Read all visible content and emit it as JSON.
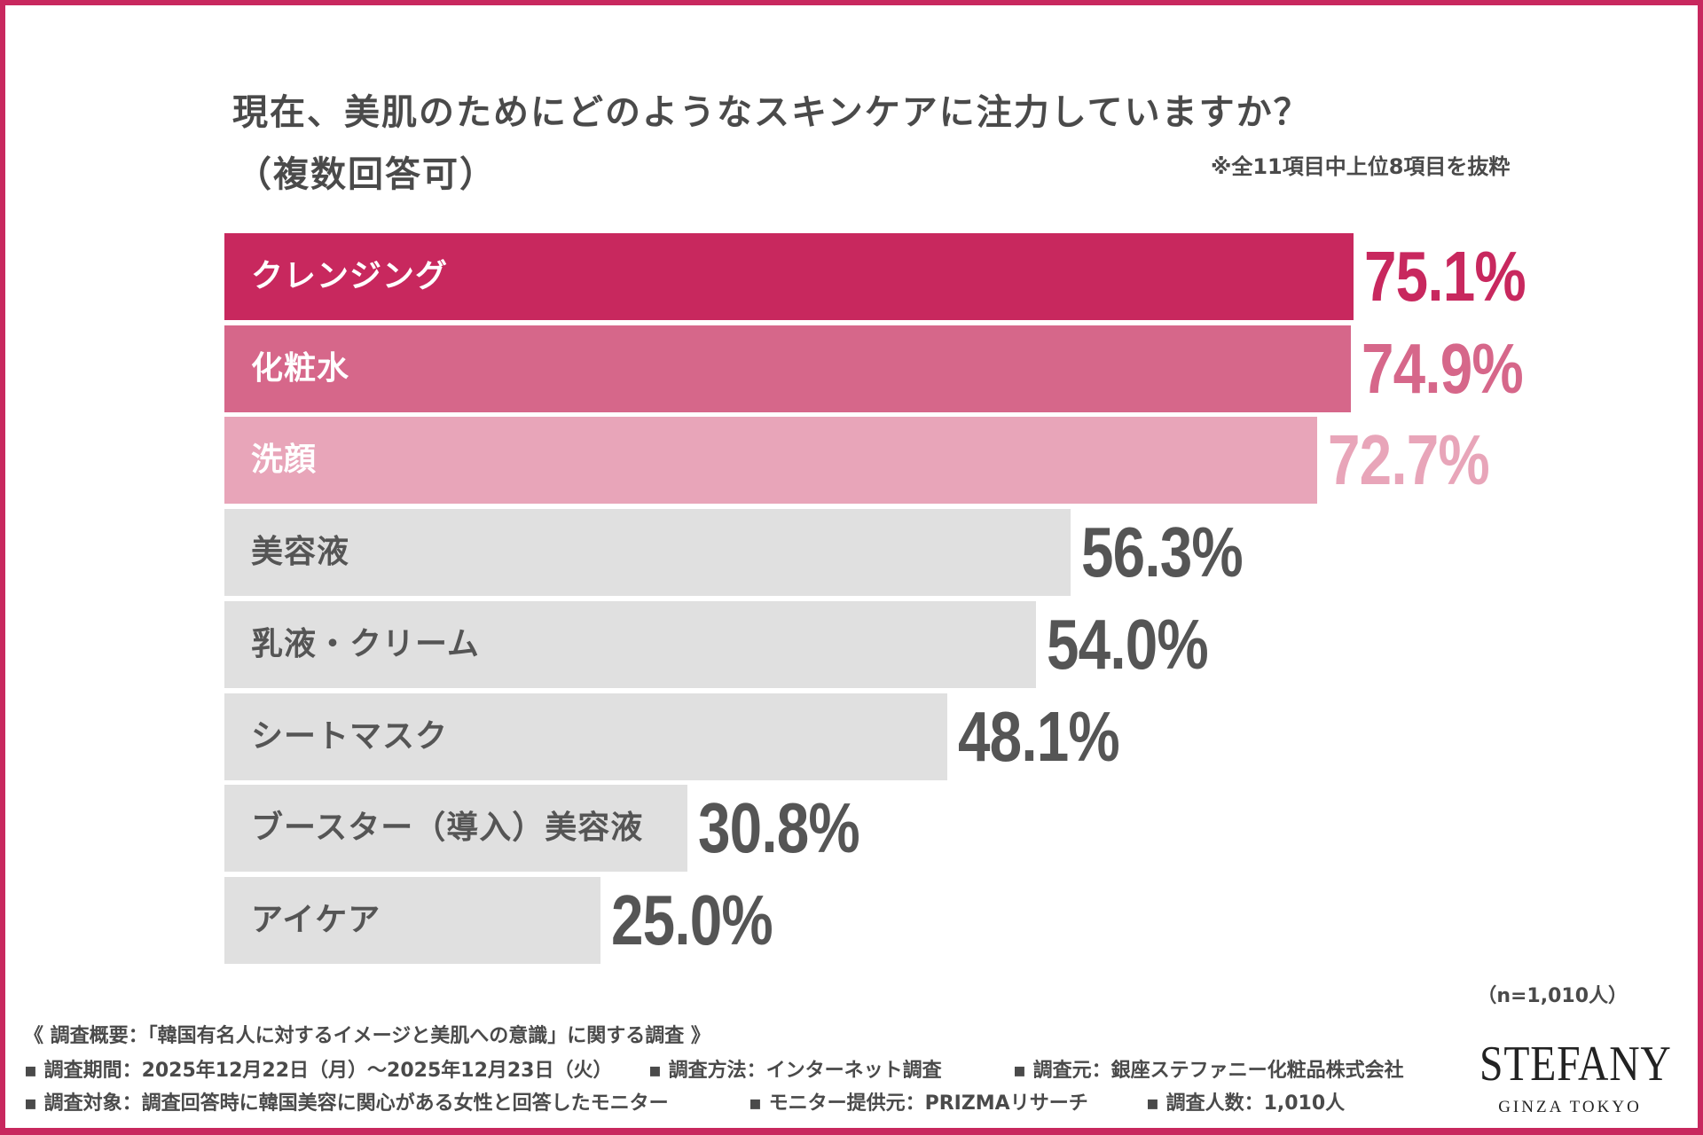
{
  "title_line1": "現在、美肌のためにどのようなスキンケアに注力していますか？",
  "title_line2": "（複数回答可）",
  "note": "※全11項目中上位8項目を抜粋",
  "sample_size": "（n=1,010人）",
  "chart_data": {
    "type": "bar",
    "orientation": "horizontal",
    "title": "現在、美肌のためにどのようなスキンケアに注力していますか？（複数回答可）",
    "categories": [
      "クレンジング",
      "化粧水",
      "洗顔",
      "美容液",
      "乳液・クリーム",
      "シートマスク",
      "ブースター（導入）美容液",
      "アイケア"
    ],
    "values": [
      75.1,
      74.9,
      72.7,
      56.3,
      54.0,
      48.1,
      30.8,
      25.0
    ],
    "value_labels": [
      "75.1%",
      "74.9%",
      "72.7%",
      "56.3%",
      "54.0%",
      "48.1%",
      "30.8%",
      "25.0%"
    ],
    "unit": "%",
    "xlim": [
      0,
      100
    ],
    "grid": false,
    "legend": "none",
    "bar_colors": [
      "#c8285e",
      "#d6678a",
      "#e8a5b9",
      "#e0e0e0",
      "#e0e0e0",
      "#e0e0e0",
      "#e0e0e0",
      "#e0e0e0"
    ],
    "value_colors": [
      "#c8285e",
      "#d6678a",
      "#e8a5b9",
      "#555555",
      "#555555",
      "#555555",
      "#555555",
      "#555555"
    ],
    "label_colors": [
      "#ffffff",
      "#ffffff",
      "#ffffff",
      "#555555",
      "#555555",
      "#555555",
      "#555555",
      "#555555"
    ]
  },
  "footer": {
    "summary": "《 調査概要：「韓国有名人に対するイメージと美肌への意識」に関する調査 》",
    "period": "▪ 調査期間：2025年12月22日（月）～2025年12月23日（火）",
    "method": "▪ 調査方法：インターネット調査",
    "organizer": "▪ 調査元：銀座ステファニー化粧品株式会社",
    "target": "▪ 調査対象：調査回答時に韓国美容に関心がある女性と回答したモニター",
    "panel": "▪ モニター提供元：PRIZMAリサーチ",
    "count": "▪ 調査人数：1,010人"
  },
  "logo": {
    "main": "STEFANY",
    "sub": "GINZA TOKYO"
  },
  "brand_color": "#c8285e"
}
